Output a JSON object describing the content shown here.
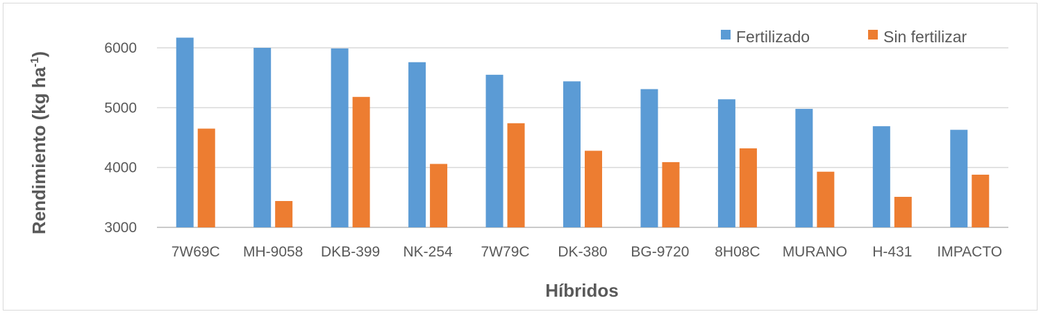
{
  "chart_data": {
    "type": "bar",
    "title": "",
    "xlabel": "Híbridos",
    "ylabel": "Rendimiento (kg ha",
    "ylabel_superscript": "-1",
    "ylabel_close": ")",
    "ylim": [
      3000,
      6500
    ],
    "yticks": [
      3000,
      4000,
      5000,
      6000
    ],
    "grid": true,
    "legend_position": "top-right",
    "categories": [
      "7W69C",
      "MH-9058",
      "DKB-399",
      "NK-254",
      "7W79C",
      "DK-380",
      "BG-9720",
      "8H08C",
      "MURANO",
      "H-431",
      "IMPACTO"
    ],
    "series": [
      {
        "name": "Fertilizado",
        "color": "#5B9BD5",
        "values": [
          6170,
          6000,
          5990,
          5760,
          5550,
          5440,
          5310,
          5140,
          4980,
          4690,
          4630
        ]
      },
      {
        "name": "Sin fertilizar",
        "color": "#ED7D31",
        "values": [
          4650,
          3440,
          5180,
          4060,
          4740,
          4280,
          4090,
          4320,
          3930,
          3510,
          3880
        ]
      }
    ]
  }
}
